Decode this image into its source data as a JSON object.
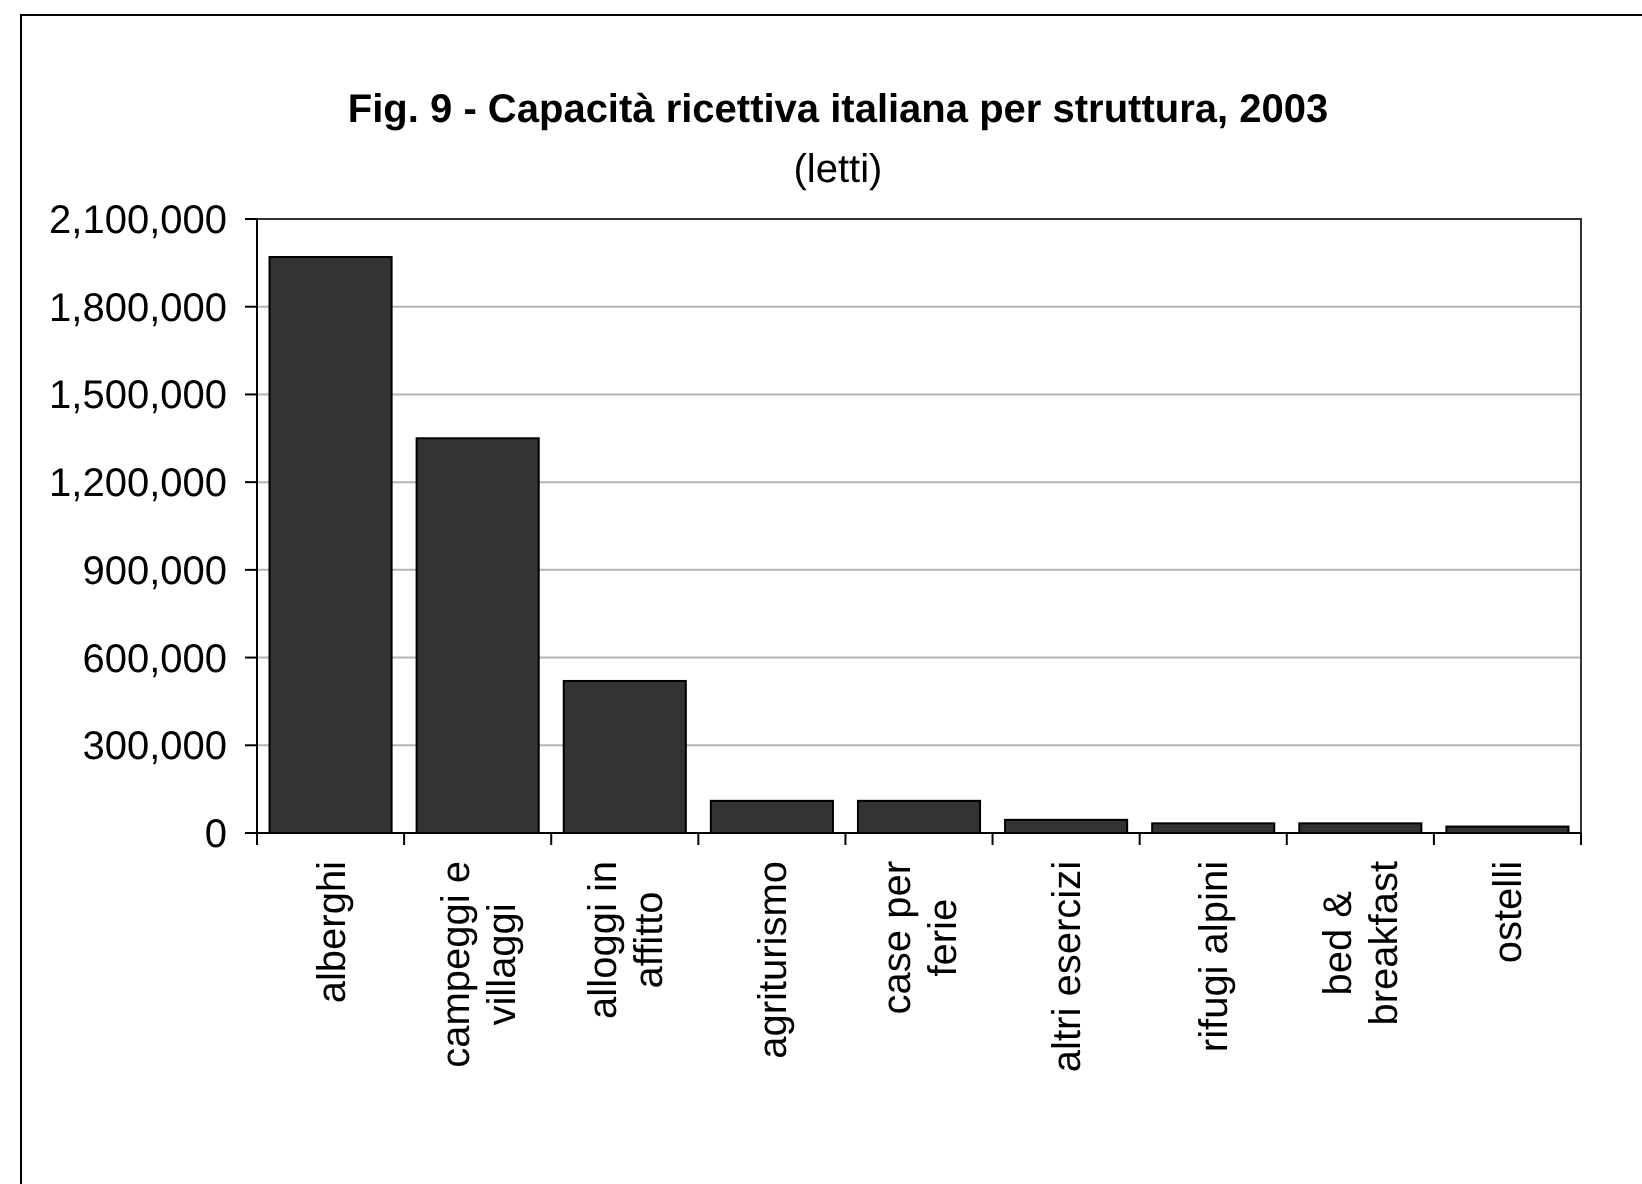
{
  "chart_data": {
    "type": "bar",
    "title": "Fig. 9 - Capacità ricettiva italiana per struttura, 2003",
    "subtitle": "(letti)",
    "categories": [
      "alberghi",
      "campeggi e villaggi",
      "alloggi in affitto",
      "agriturismo",
      "case per ferie",
      "altri esercizi",
      "rifugi alpini",
      "bed & breakfast",
      "ostelli"
    ],
    "values": [
      1970000,
      1350000,
      520000,
      110000,
      110000,
      45000,
      33000,
      33000,
      22000
    ],
    "color": "#333333",
    "ylim": [
      0,
      2100000
    ],
    "yticks": [
      0,
      {
        "value": 300000,
        "label": "300,000"
      },
      {
        "value": 600000,
        "label": "600,000"
      },
      {
        "value": 900000,
        "label": "900,000"
      },
      {
        "value": 1200000,
        "label": "1,200,000"
      },
      {
        "value": 1500000,
        "label": "1,500,000"
      },
      {
        "value": 1800000,
        "label": "1,800,000"
      },
      {
        "value": 2100000,
        "label": "2,100,000"
      }
    ],
    "grid": "y"
  }
}
